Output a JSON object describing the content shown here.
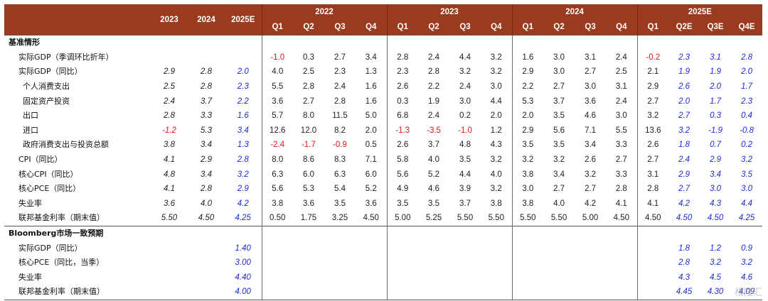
{
  "header": {
    "annual_years": [
      "2023",
      "2024",
      "2025E"
    ],
    "groups": [
      "2022",
      "2023",
      "2024",
      "2025E"
    ],
    "quarters": [
      [
        "Q1",
        "Q2",
        "Q3",
        "Q4"
      ],
      [
        "Q1",
        "Q2",
        "Q3",
        "Q4"
      ],
      [
        "Q1",
        "Q2",
        "Q3",
        "Q4"
      ],
      [
        "Q1",
        "Q2E",
        "Q3E",
        "Q4E"
      ]
    ]
  },
  "sections": [
    {
      "title": "基准情形",
      "rows": [
        {
          "label": "实际GDP（季调环比折年）",
          "indent": 1,
          "annual": [
            "",
            "",
            ""
          ],
          "q": [
            "-1.0",
            "0.3",
            "2.7",
            "3.4",
            "2.8",
            "2.4",
            "4.4",
            "3.2",
            "1.6",
            "3.0",
            "3.1",
            "2.4",
            "-0.2",
            "2.3",
            "3.1",
            "2.8"
          ]
        },
        {
          "label": "实际GDP（同比）",
          "indent": 1,
          "annual": [
            "2.9",
            "2.8",
            "2.0"
          ],
          "q": [
            "4.0",
            "2.5",
            "2.3",
            "1.3",
            "2.3",
            "2.8",
            "3.2",
            "3.2",
            "2.9",
            "3.0",
            "2.7",
            "2.5",
            "2.1",
            "1.9",
            "1.9",
            "2.0"
          ]
        },
        {
          "label": "个人消费支出",
          "indent": 2,
          "annual": [
            "2.5",
            "2.8",
            "2.3"
          ],
          "q": [
            "5.5",
            "2.8",
            "2.4",
            "1.6",
            "2.6",
            "2.2",
            "2.4",
            "3.0",
            "2.2",
            "2.7",
            "3.0",
            "3.1",
            "2.9",
            "2.6",
            "2.0",
            "1.7"
          ]
        },
        {
          "label": "固定资产投资",
          "indent": 2,
          "annual": [
            "2.4",
            "3.7",
            "2.2"
          ],
          "q": [
            "3.6",
            "2.7",
            "2.8",
            "1.6",
            "0.3",
            "1.9",
            "3.0",
            "4.4",
            "5.3",
            "3.7",
            "3.6",
            "2.4",
            "2.7",
            "2.0",
            "1.7",
            "2.3"
          ]
        },
        {
          "label": "出口",
          "indent": 2,
          "annual": [
            "2.8",
            "3.3",
            "1.6"
          ],
          "q": [
            "5.7",
            "8.0",
            "11.5",
            "5.0",
            "6.8",
            "2.4",
            "0.2",
            "2.0",
            "2.0",
            "3.5",
            "4.6",
            "3.0",
            "3.2",
            "2.7",
            "0.3",
            "0.4"
          ]
        },
        {
          "label": "进口",
          "indent": 2,
          "annual": [
            "-1.2",
            "5.3",
            "3.4"
          ],
          "q": [
            "12.6",
            "12.0",
            "8.2",
            "2.0",
            "-1.3",
            "-3.5",
            "-1.0",
            "1.2",
            "2.9",
            "5.6",
            "7.1",
            "5.5",
            "13.6",
            "3.2",
            "-1.9",
            "-0.8"
          ]
        },
        {
          "label": "政府消费支出与投资总额",
          "indent": 2,
          "annual": [
            "3.8",
            "3.4",
            "1.3"
          ],
          "q": [
            "-2.4",
            "-1.7",
            "-0.9",
            "0.5",
            "2.6",
            "3.7",
            "4.8",
            "4.3",
            "3.5",
            "3.5",
            "3.4",
            "3.3",
            "2.6",
            "1.8",
            "0.7",
            "0.2"
          ]
        },
        {
          "label": "CPI（同比）",
          "indent": 0,
          "annual": [
            "4.1",
            "2.9",
            "2.8"
          ],
          "q": [
            "8.0",
            "8.6",
            "8.3",
            "7.1",
            "5.8",
            "4.0",
            "3.5",
            "3.2",
            "3.2",
            "3.2",
            "2.6",
            "2.7",
            "2.7",
            "2.4",
            "2.9",
            "3.2"
          ]
        },
        {
          "label": "核心CPI（同比）",
          "indent": 0,
          "annual": [
            "4.8",
            "3.4",
            "3.2"
          ],
          "q": [
            "6.3",
            "6.0",
            "6.3",
            "6.0",
            "5.6",
            "5.2",
            "4.4",
            "4.0",
            "3.8",
            "3.4",
            "3.2",
            "3.3",
            "3.1",
            "2.9",
            "3.4",
            "3.5"
          ]
        },
        {
          "label": "核心PCE（同比）",
          "indent": 0,
          "annual": [
            "4.1",
            "2.8",
            "2.9"
          ],
          "q": [
            "5.6",
            "5.3",
            "5.4",
            "5.2",
            "4.9",
            "4.6",
            "3.9",
            "3.2",
            "3.0",
            "2.7",
            "2.7",
            "2.8",
            "2.8",
            "2.7",
            "3.0",
            "3.0"
          ]
        },
        {
          "label": "失业率",
          "indent": 0,
          "annual": [
            "3.6",
            "4.0",
            "4.2"
          ],
          "q": [
            "3.8",
            "3.6",
            "3.5",
            "3.6",
            "3.5",
            "3.5",
            "3.7",
            "3.8",
            "3.8",
            "4.0",
            "4.2",
            "4.1",
            "4.1",
            "4.2",
            "4.3",
            "4.4"
          ]
        },
        {
          "label": "联邦基金利率（期末值）",
          "indent": 0,
          "annual": [
            "5.50",
            "4.50",
            "4.25"
          ],
          "q": [
            "0.50",
            "1.75",
            "3.25",
            "4.50",
            "5.00",
            "5.25",
            "5.50",
            "5.50",
            "5.50",
            "5.50",
            "5.00",
            "4.50",
            "4.50",
            "4.50",
            "4.50",
            "4.25"
          ]
        }
      ]
    },
    {
      "title": "Bloomberg市场一致预期",
      "rows": [
        {
          "label": "实际GDP（同比）",
          "indent": 0,
          "annual": [
            "",
            "",
            "1.40"
          ],
          "q": [
            "",
            "",
            "",
            "",
            "",
            "",
            "",
            "",
            "",
            "",
            "",
            "",
            "",
            "1.8",
            "1.2",
            "0.9"
          ]
        },
        {
          "label": "核心PCE（同比，当季）",
          "indent": 0,
          "annual": [
            "",
            "",
            "3.00"
          ],
          "q": [
            "",
            "",
            "",
            "",
            "",
            "",
            "",
            "",
            "",
            "",
            "",
            "",
            "",
            "2.8",
            "3.2",
            "3.2"
          ]
        },
        {
          "label": "失业率",
          "indent": 0,
          "annual": [
            "",
            "",
            "4.40"
          ],
          "q": [
            "",
            "",
            "",
            "",
            "",
            "",
            "",
            "",
            "",
            "",
            "",
            "",
            "",
            "4.3",
            "4.5",
            "4.6"
          ]
        },
        {
          "label": "联邦基金利率（期末值）",
          "indent": 0,
          "annual": [
            "",
            "",
            "4.00"
          ],
          "q": [
            "",
            "",
            "",
            "",
            "",
            "",
            "",
            "",
            "",
            "",
            "",
            "",
            "",
            "4.45",
            "4.30",
            "4.09"
          ]
        }
      ]
    }
  ],
  "watermark": "格隆汇",
  "colors": {
    "header_bg": "#9a3a1e",
    "negative": "#e0161b",
    "forecast": "#1e2bd6"
  }
}
